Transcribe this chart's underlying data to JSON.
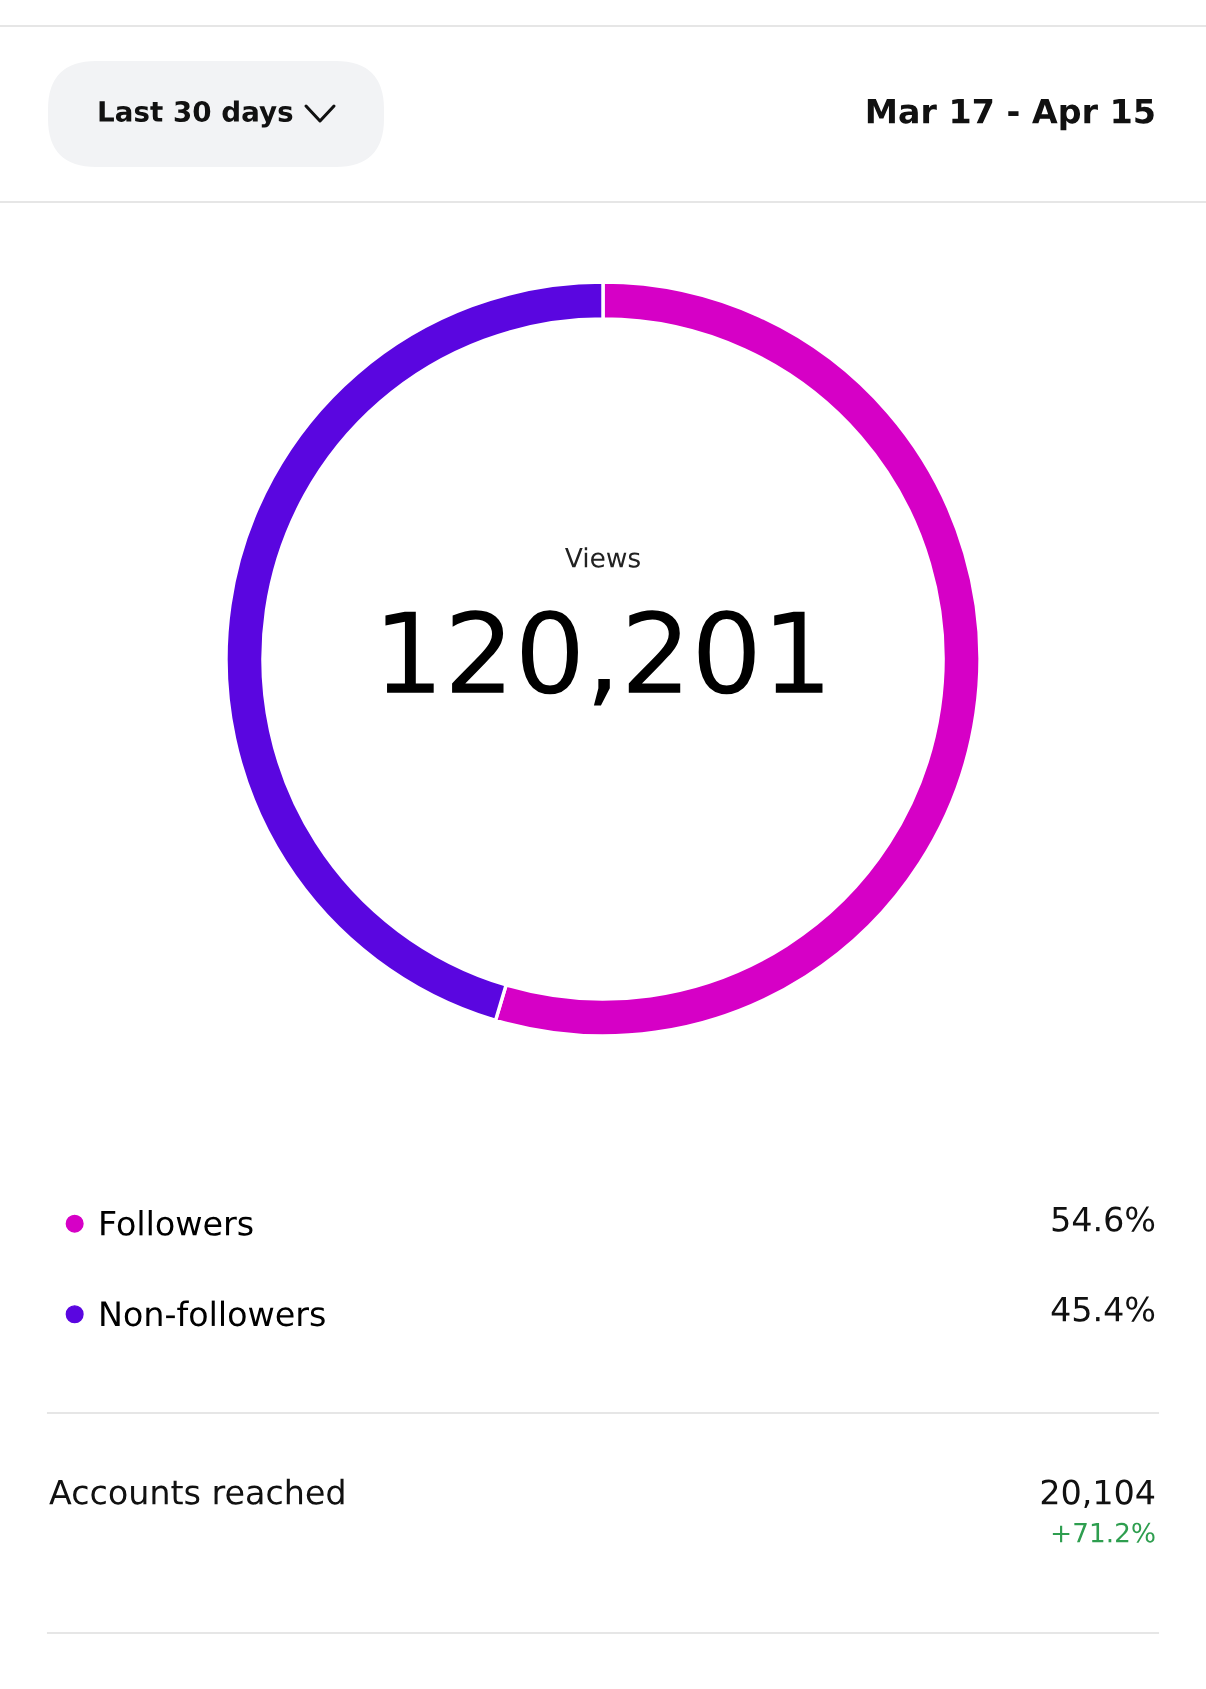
{
  "chart_data": {
    "type": "donut",
    "title": "Views",
    "subtitle": "120,201",
    "categories": [
      "Followers",
      "Non-followers"
    ],
    "values": [
      54.6,
      45.4
    ],
    "colors": [
      "#d600c6",
      "#5a06e0"
    ],
    "value_labels": [
      "54.6%",
      "45.4%"
    ],
    "legend": "bottom",
    "annotations": [
      "Last 30 days",
      "Mar 17 - Apr 15",
      "Accounts reached",
      "20,104",
      "+71.2%"
    ]
  }
}
